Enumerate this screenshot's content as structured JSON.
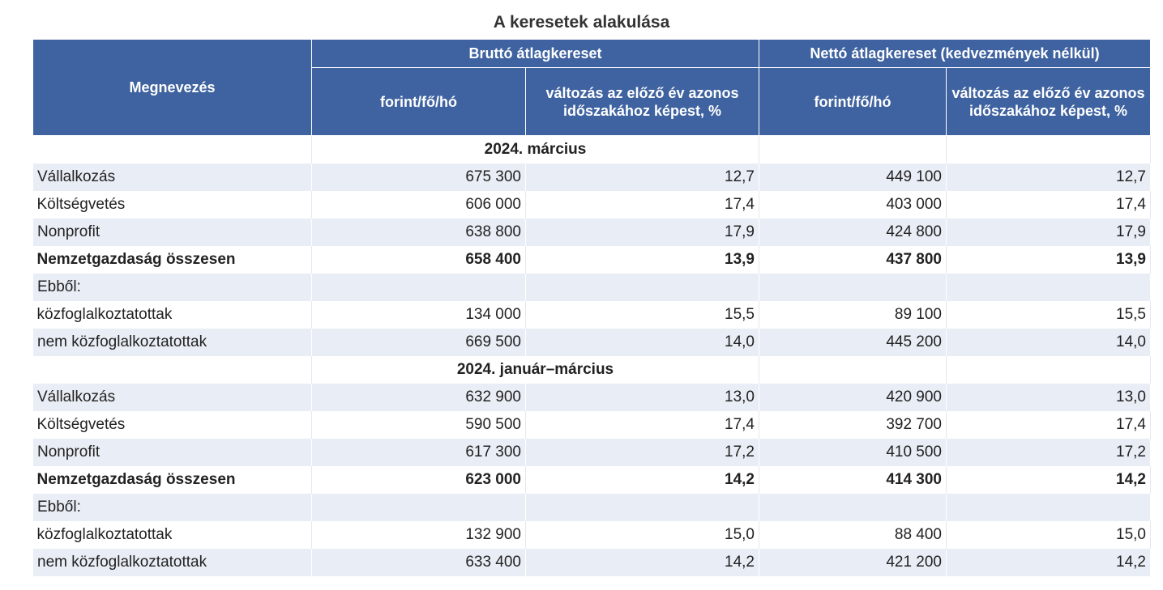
{
  "title": "A keresetek alakulása",
  "header": {
    "col_name": "Megnevezés",
    "group_gross": "Bruttó átlagkereset",
    "group_net": "Nettó átlagkereset (kedvezmények nélkül)",
    "unit": "forint/fő/hó",
    "change": "változás az előző év azonos időszakához képest, %"
  },
  "sections": [
    {
      "label": "2024. március",
      "rows": [
        {
          "name": "Vállalkozás",
          "gross": "675 300",
          "gross_chg": "12,7",
          "net": "449 100",
          "net_chg": "12,7"
        },
        {
          "name": "Költségvetés",
          "gross": "606 000",
          "gross_chg": "17,4",
          "net": "403 000",
          "net_chg": "17,4"
        },
        {
          "name": "Nonprofit",
          "gross": "638 800",
          "gross_chg": "17,9",
          "net": "424 800",
          "net_chg": "17,9"
        },
        {
          "name": "Nemzetgazdaság összesen",
          "gross": "658 400",
          "gross_chg": "13,9",
          "net": "437 800",
          "net_chg": "13,9"
        },
        {
          "name": "Ebből:",
          "gross": "",
          "gross_chg": "",
          "net": "",
          "net_chg": ""
        },
        {
          "name": "közfoglalkoztatottak",
          "gross": "134 000",
          "gross_chg": "15,5",
          "net": "89 100",
          "net_chg": "15,5"
        },
        {
          "name": "nem közfoglalkoztatottak",
          "gross": "669 500",
          "gross_chg": "14,0",
          "net": "445 200",
          "net_chg": "14,0"
        }
      ]
    },
    {
      "label": "2024. január–március",
      "rows": [
        {
          "name": "Vállalkozás",
          "gross": "632 900",
          "gross_chg": "13,0",
          "net": "420 900",
          "net_chg": "13,0"
        },
        {
          "name": "Költségvetés",
          "gross": "590 500",
          "gross_chg": "17,4",
          "net": "392 700",
          "net_chg": "17,4"
        },
        {
          "name": "Nonprofit",
          "gross": "617 300",
          "gross_chg": "17,2",
          "net": "410 500",
          "net_chg": "17,2"
        },
        {
          "name": "Nemzetgazdaság összesen",
          "gross": "623 000",
          "gross_chg": "14,2",
          "net": "414 300",
          "net_chg": "14,2"
        },
        {
          "name": "Ebből:",
          "gross": "",
          "gross_chg": "",
          "net": "",
          "net_chg": ""
        },
        {
          "name": "közfoglalkoztatottak",
          "gross": "132 900",
          "gross_chg": "15,0",
          "net": "88 400",
          "net_chg": "15,0"
        },
        {
          "name": "nem közfoglalkoztatottak",
          "gross": "633 400",
          "gross_chg": "14,2",
          "net": "421 200",
          "net_chg": "14,2"
        }
      ]
    }
  ]
}
